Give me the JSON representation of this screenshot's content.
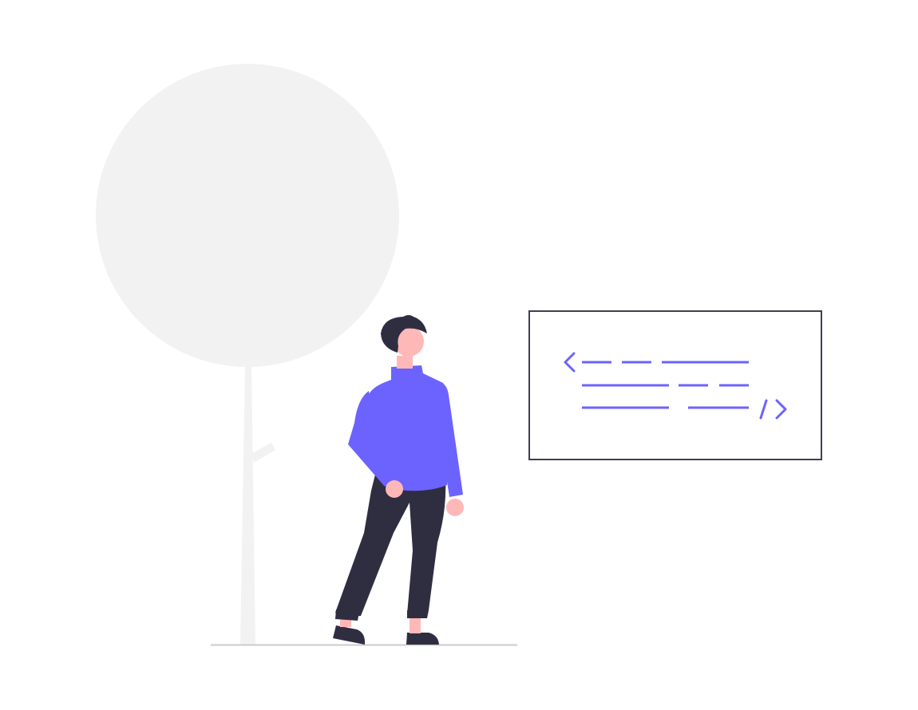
{
  "colors": {
    "background": "#ffffff",
    "tree": "#f2f2f2",
    "ground": "#cccccc",
    "shirt": "#6c63ff",
    "pants": "#2f2e41",
    "hair": "#2f2e41",
    "skin": "#ffb8b8",
    "code_frame": "#3f3d56",
    "code_glyphs": "#6c63ff"
  },
  "icons": {
    "tree": "tree-icon",
    "person": "person-icon",
    "code_panel": "code-brackets-icon"
  }
}
